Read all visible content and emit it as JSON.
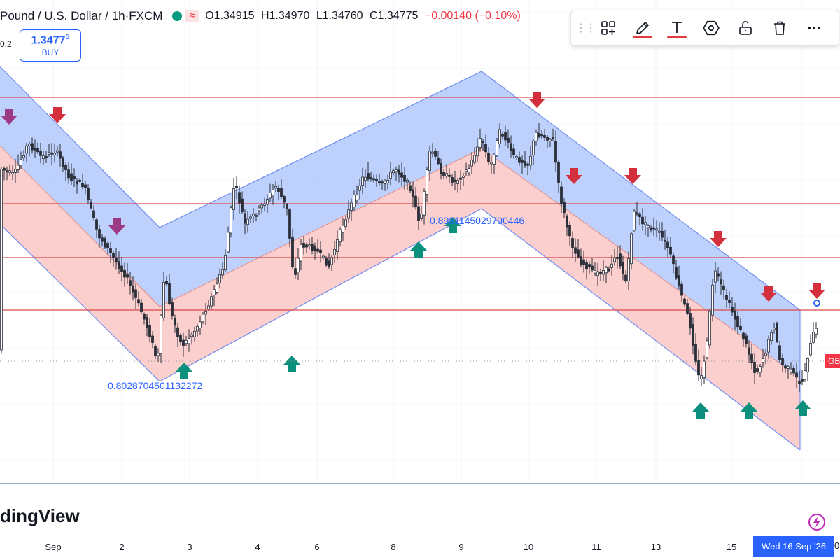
{
  "legend": {
    "symbol": "Pound / U.S. Dollar",
    "sep": "·",
    "timeframe": "1h",
    "exchange": "FXCM",
    "approx_badge": "≈",
    "open": "O1.34915",
    "high": "H1.34970",
    "low": "L1.34760",
    "close": "C1.34775",
    "change": "−0.00140 (−0.10%)"
  },
  "volume_label": "0.2",
  "buy_button": {
    "price_main": "1.3477",
    "price_sup": "5",
    "label": "BUY"
  },
  "toolbar": {
    "items": [
      {
        "icon": "layout-icon",
        "underline": ""
      },
      {
        "icon": "pencil-icon",
        "underline": "#e03a3a"
      },
      {
        "icon": "text-icon",
        "underline": "#e03a3a"
      },
      {
        "icon": "hexagon-icon",
        "underline": ""
      },
      {
        "icon": "unlock-icon",
        "underline": ""
      },
      {
        "icon": "trash-icon",
        "underline": ""
      },
      {
        "icon": "more-icon",
        "underline": ""
      }
    ]
  },
  "annotations": {
    "fib_low": "0.8028704501132272",
    "fib_mid": "0.8981145029790446"
  },
  "watermark": "dingView",
  "time_axis": {
    "ticks": [
      {
        "label": "Sep"
      },
      {
        "label": "2"
      },
      {
        "label": "3"
      },
      {
        "label": "4"
      },
      {
        "label": "6"
      },
      {
        "label": "8"
      },
      {
        "label": "9"
      },
      {
        "label": "10"
      },
      {
        "label": "11"
      },
      {
        "label": "13"
      },
      {
        "label": "15"
      }
    ],
    "crosshair_label": "Wed 16 Sep '26",
    "edge_label": "0"
  },
  "price_tag": "GB",
  "colors": {
    "up": "#089981",
    "down": "#f23645",
    "candle": "#2a2e39",
    "channel_blue": "#b3c8fb",
    "channel_red": "#f9c7c4",
    "line_blue": "#6f8cf0",
    "resistance": "#d94a4a",
    "arrow_red": "#d32f3c",
    "arrow_purple": "#9c3a86",
    "arrow_teal": "#0c8f7c",
    "accent": "#2962ff"
  }
}
